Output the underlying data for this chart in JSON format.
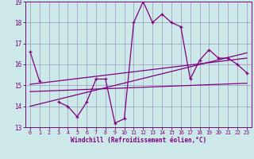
{
  "xlabel": "Windchill (Refroidissement éolien,°C)",
  "bg_color": "#cce8e8",
  "line_color": "#800080",
  "grid_color": "#9999bb",
  "xlim": [
    -0.5,
    23.5
  ],
  "ylim": [
    13,
    19
  ],
  "xticks": [
    0,
    1,
    2,
    3,
    4,
    5,
    6,
    7,
    8,
    9,
    10,
    11,
    12,
    13,
    14,
    15,
    16,
    17,
    18,
    19,
    20,
    21,
    22,
    23
  ],
  "yticks": [
    13,
    14,
    15,
    16,
    17,
    18,
    19
  ],
  "series1_x": [
    0,
    1,
    2,
    3,
    4,
    5,
    6,
    7,
    8,
    9,
    10,
    11,
    12,
    13,
    14,
    15,
    16,
    17,
    18,
    19,
    20,
    21,
    22,
    23
  ],
  "series1_y": [
    16.6,
    15.2,
    null,
    14.2,
    14.0,
    13.5,
    14.2,
    15.3,
    15.3,
    13.2,
    13.4,
    18.0,
    19.0,
    18.0,
    18.4,
    18.0,
    17.8,
    15.3,
    16.2,
    16.7,
    16.3,
    16.3,
    16.0,
    15.6
  ],
  "trend1_x": [
    0,
    23
  ],
  "trend1_y": [
    15.05,
    16.3
  ],
  "trend2_x": [
    0,
    23
  ],
  "trend2_y": [
    14.0,
    16.55
  ],
  "trend3_x": [
    0,
    23
  ],
  "trend3_y": [
    14.7,
    15.1
  ]
}
